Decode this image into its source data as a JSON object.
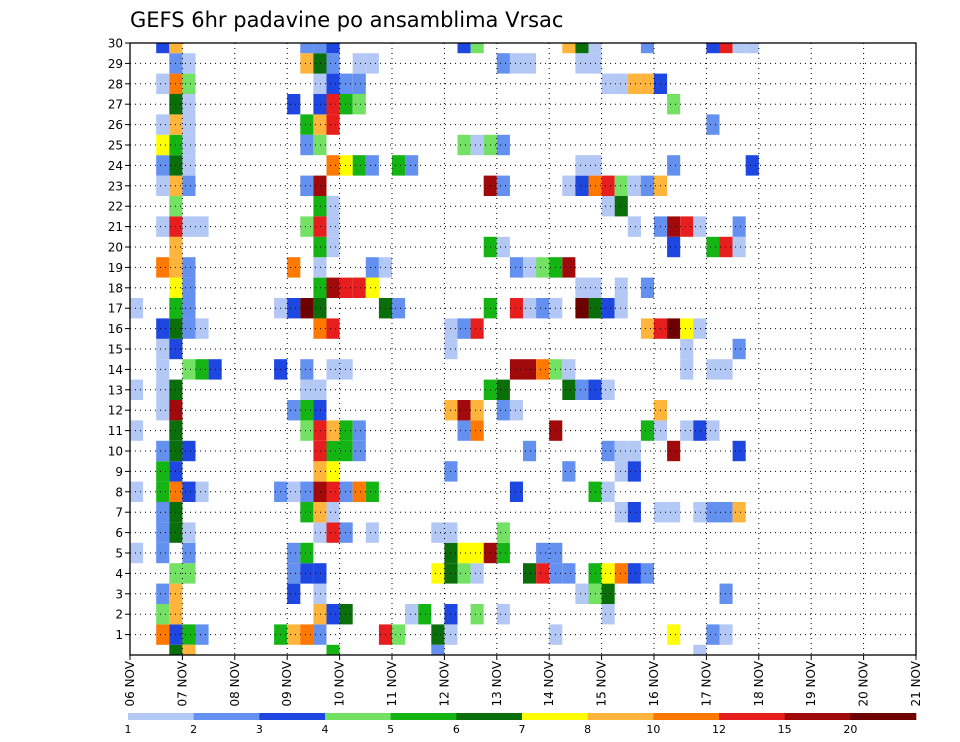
{
  "chart_data": {
    "type": "heatmap",
    "title": "GEFS 6hr padavine po ansamblima Vrsac",
    "y_ticks": [
      "1",
      "2",
      "3",
      "4",
      "5",
      "6",
      "7",
      "8",
      "9",
      "10",
      "11",
      "12",
      "13",
      "14",
      "15",
      "16",
      "17",
      "18",
      "19",
      "20",
      "21",
      "22",
      "23",
      "24",
      "25",
      "26",
      "27",
      "28",
      "29",
      "30"
    ],
    "x_ticks": [
      "06 NOV",
      "07 NOV",
      "08 NOV",
      "09 NOV",
      "10 NOV",
      "11 NOV",
      "12 NOV",
      "13 NOV",
      "14 NOV",
      "15 NOV",
      "16 NOV",
      "17 NOV",
      "18 NOV",
      "19 NOV",
      "20 NOV",
      "21 NOV"
    ],
    "x_range_days": [
      0,
      15
    ],
    "y_range": [
      0,
      30
    ],
    "grid": true,
    "colorbar": {
      "labels": [
        "1",
        "2",
        "3",
        "4",
        "5",
        "6",
        "7",
        "8",
        "10",
        "12",
        "15",
        "20"
      ],
      "colors": [
        "#b4c8f5",
        "#6490f0",
        "#1e46e1",
        "#73e164",
        "#14b414",
        "#0a6e0a",
        "#ffff00",
        "#ffb43c",
        "#ff7800",
        "#e61e1e",
        "#a00a0a",
        "#6e0000"
      ]
    },
    "cells": [
      [
        1,
        2,
        9
      ],
      [
        1,
        3,
        3
      ],
      [
        1,
        4,
        5
      ],
      [
        1,
        5,
        2
      ],
      [
        1,
        11,
        5
      ],
      [
        1,
        12,
        8
      ],
      [
        1,
        13,
        9
      ],
      [
        1,
        14,
        2
      ],
      [
        1,
        19,
        10
      ],
      [
        1,
        20,
        4
      ],
      [
        1,
        23,
        6
      ],
      [
        1,
        24,
        1
      ],
      [
        1,
        32,
        1
      ],
      [
        1,
        41,
        7
      ],
      [
        1,
        44,
        2
      ],
      [
        1,
        45,
        1
      ],
      [
        2,
        2,
        4
      ],
      [
        2,
        3,
        8
      ],
      [
        2,
        14,
        8
      ],
      [
        2,
        15,
        3
      ],
      [
        2,
        16,
        6
      ],
      [
        2,
        21,
        1
      ],
      [
        2,
        22,
        5
      ],
      [
        2,
        24,
        3
      ],
      [
        2,
        26,
        4
      ],
      [
        2,
        28,
        1
      ],
      [
        2,
        36,
        1
      ],
      [
        3,
        2,
        2
      ],
      [
        3,
        3,
        8
      ],
      [
        3,
        12,
        3
      ],
      [
        3,
        14,
        1
      ],
      [
        3,
        34,
        1
      ],
      [
        3,
        35,
        4
      ],
      [
        3,
        36,
        6
      ],
      [
        3,
        45,
        2
      ],
      [
        4,
        3,
        4
      ],
      [
        4,
        4,
        4
      ],
      [
        4,
        12,
        2
      ],
      [
        4,
        13,
        3
      ],
      [
        4,
        14,
        3
      ],
      [
        4,
        23,
        7
      ],
      [
        4,
        24,
        6
      ],
      [
        4,
        25,
        4
      ],
      [
        4,
        26,
        1
      ],
      [
        4,
        30,
        6
      ],
      [
        4,
        31,
        10
      ],
      [
        4,
        32,
        2
      ],
      [
        4,
        33,
        2
      ],
      [
        4,
        35,
        5
      ],
      [
        4,
        36,
        7
      ],
      [
        4,
        37,
        9
      ],
      [
        4,
        38,
        3
      ],
      [
        4,
        39,
        2
      ],
      [
        5,
        0,
        1
      ],
      [
        5,
        2,
        2
      ],
      [
        5,
        4,
        2
      ],
      [
        5,
        12,
        2
      ],
      [
        5,
        13,
        5
      ],
      [
        5,
        24,
        6
      ],
      [
        5,
        25,
        7
      ],
      [
        5,
        26,
        7
      ],
      [
        5,
        27,
        11
      ],
      [
        5,
        28,
        5
      ],
      [
        5,
        31,
        2
      ],
      [
        5,
        32,
        2
      ],
      [
        6,
        2,
        2
      ],
      [
        6,
        3,
        6
      ],
      [
        6,
        4,
        1
      ],
      [
        6,
        14,
        1
      ],
      [
        6,
        15,
        10
      ],
      [
        6,
        16,
        2
      ],
      [
        6,
        18,
        1
      ],
      [
        6,
        23,
        1
      ],
      [
        6,
        24,
        1
      ],
      [
        6,
        28,
        4
      ],
      [
        7,
        2,
        2
      ],
      [
        7,
        3,
        6
      ],
      [
        7,
        13,
        5
      ],
      [
        7,
        14,
        8
      ],
      [
        7,
        15,
        1
      ],
      [
        7,
        37,
        1
      ],
      [
        7,
        38,
        3
      ],
      [
        7,
        40,
        1
      ],
      [
        7,
        41,
        1
      ],
      [
        7,
        43,
        1
      ],
      [
        7,
        44,
        2
      ],
      [
        7,
        45,
        2
      ],
      [
        7,
        46,
        8
      ],
      [
        8,
        0,
        1
      ],
      [
        8,
        2,
        5
      ],
      [
        8,
        3,
        9
      ],
      [
        8,
        4,
        3
      ],
      [
        8,
        5,
        1
      ],
      [
        8,
        11,
        2
      ],
      [
        8,
        12,
        1
      ],
      [
        8,
        13,
        2
      ],
      [
        8,
        14,
        11
      ],
      [
        8,
        15,
        10
      ],
      [
        8,
        16,
        2
      ],
      [
        8,
        17,
        9
      ],
      [
        8,
        18,
        5
      ],
      [
        8,
        29,
        3
      ],
      [
        8,
        35,
        5
      ],
      [
        8,
        36,
        1
      ],
      [
        9,
        2,
        5
      ],
      [
        9,
        3,
        3
      ],
      [
        9,
        14,
        8
      ],
      [
        9,
        15,
        7
      ],
      [
        9,
        24,
        2
      ],
      [
        9,
        33,
        2
      ],
      [
        9,
        37,
        1
      ],
      [
        9,
        38,
        3
      ],
      [
        10,
        2,
        2
      ],
      [
        10,
        3,
        6
      ],
      [
        10,
        4,
        3
      ],
      [
        10,
        14,
        10
      ],
      [
        10,
        15,
        5
      ],
      [
        10,
        16,
        5
      ],
      [
        10,
        17,
        2
      ],
      [
        10,
        30,
        2
      ],
      [
        10,
        36,
        2
      ],
      [
        10,
        37,
        1
      ],
      [
        10,
        38,
        1
      ],
      [
        10,
        41,
        11
      ],
      [
        10,
        46,
        3
      ],
      [
        11,
        0,
        1
      ],
      [
        11,
        3,
        6
      ],
      [
        11,
        13,
        4
      ],
      [
        11,
        14,
        10
      ],
      [
        11,
        15,
        8
      ],
      [
        11,
        16,
        5
      ],
      [
        11,
        17,
        2
      ],
      [
        11,
        25,
        2
      ],
      [
        11,
        26,
        9
      ],
      [
        11,
        32,
        11
      ],
      [
        11,
        39,
        5
      ],
      [
        11,
        40,
        1
      ],
      [
        11,
        42,
        1
      ],
      [
        11,
        43,
        3
      ],
      [
        11,
        44,
        1
      ],
      [
        12,
        2,
        1
      ],
      [
        12,
        3,
        11
      ],
      [
        12,
        12,
        2
      ],
      [
        12,
        13,
        5
      ],
      [
        12,
        14,
        3
      ],
      [
        12,
        24,
        8
      ],
      [
        12,
        25,
        11
      ],
      [
        12,
        26,
        8
      ],
      [
        12,
        28,
        2
      ],
      [
        12,
        29,
        1
      ],
      [
        12,
        40,
        8
      ],
      [
        13,
        0,
        1
      ],
      [
        13,
        2,
        1
      ],
      [
        13,
        3,
        6
      ],
      [
        13,
        13,
        1
      ],
      [
        13,
        14,
        1
      ],
      [
        13,
        27,
        5
      ],
      [
        13,
        28,
        6
      ],
      [
        13,
        33,
        6
      ],
      [
        13,
        34,
        2
      ],
      [
        13,
        35,
        3
      ],
      [
        13,
        36,
        1
      ],
      [
        14,
        2,
        1
      ],
      [
        14,
        4,
        4
      ],
      [
        14,
        5,
        5
      ],
      [
        14,
        6,
        3
      ],
      [
        14,
        11,
        3
      ],
      [
        14,
        13,
        2
      ],
      [
        14,
        15,
        1
      ],
      [
        14,
        16,
        1
      ],
      [
        14,
        29,
        11
      ],
      [
        14,
        30,
        11
      ],
      [
        14,
        31,
        9
      ],
      [
        14,
        32,
        4
      ],
      [
        14,
        33,
        1
      ],
      [
        14,
        42,
        1
      ],
      [
        14,
        44,
        1
      ],
      [
        14,
        45,
        1
      ],
      [
        15,
        2,
        1
      ],
      [
        15,
        3,
        3
      ],
      [
        15,
        24,
        1
      ],
      [
        15,
        42,
        1
      ],
      [
        15,
        46,
        2
      ],
      [
        16,
        2,
        3
      ],
      [
        16,
        3,
        6
      ],
      [
        16,
        4,
        2
      ],
      [
        16,
        5,
        1
      ],
      [
        16,
        14,
        9
      ],
      [
        16,
        15,
        10
      ],
      [
        16,
        24,
        1
      ],
      [
        16,
        25,
        2
      ],
      [
        16,
        26,
        10
      ],
      [
        16,
        39,
        8
      ],
      [
        16,
        40,
        10
      ],
      [
        16,
        41,
        12
      ],
      [
        16,
        42,
        7
      ],
      [
        16,
        43,
        1
      ],
      [
        17,
        0,
        1
      ],
      [
        17,
        3,
        5
      ],
      [
        17,
        4,
        2
      ],
      [
        17,
        11,
        1
      ],
      [
        17,
        12,
        3
      ],
      [
        17,
        13,
        12
      ],
      [
        17,
        14,
        6
      ],
      [
        17,
        19,
        6
      ],
      [
        17,
        20,
        2
      ],
      [
        17,
        27,
        5
      ],
      [
        17,
        29,
        10
      ],
      [
        17,
        30,
        1
      ],
      [
        17,
        31,
        2
      ],
      [
        17,
        32,
        1
      ],
      [
        17,
        34,
        12
      ],
      [
        17,
        35,
        6
      ],
      [
        17,
        36,
        3
      ],
      [
        17,
        37,
        1
      ],
      [
        18,
        3,
        7
      ],
      [
        18,
        4,
        2
      ],
      [
        18,
        14,
        5
      ],
      [
        18,
        15,
        11
      ],
      [
        18,
        16,
        10
      ],
      [
        18,
        17,
        10
      ],
      [
        18,
        18,
        7
      ],
      [
        18,
        34,
        1
      ],
      [
        18,
        35,
        1
      ],
      [
        18,
        37,
        1
      ],
      [
        18,
        39,
        2
      ],
      [
        19,
        2,
        9
      ],
      [
        19,
        3,
        8
      ],
      [
        19,
        4,
        2
      ],
      [
        19,
        12,
        9
      ],
      [
        19,
        14,
        1
      ],
      [
        19,
        18,
        2
      ],
      [
        19,
        19,
        1
      ],
      [
        19,
        29,
        2
      ],
      [
        19,
        30,
        1
      ],
      [
        19,
        31,
        4
      ],
      [
        19,
        32,
        5
      ],
      [
        19,
        33,
        11
      ],
      [
        20,
        3,
        8
      ],
      [
        20,
        14,
        5
      ],
      [
        20,
        15,
        1
      ],
      [
        20,
        27,
        5
      ],
      [
        20,
        28,
        1
      ],
      [
        20,
        41,
        3
      ],
      [
        20,
        44,
        5
      ],
      [
        20,
        45,
        10
      ],
      [
        20,
        46,
        1
      ],
      [
        21,
        2,
        1
      ],
      [
        21,
        3,
        10
      ],
      [
        21,
        4,
        1
      ],
      [
        21,
        5,
        1
      ],
      [
        21,
        13,
        4
      ],
      [
        21,
        14,
        10
      ],
      [
        21,
        15,
        1
      ],
      [
        21,
        38,
        1
      ],
      [
        21,
        40,
        2
      ],
      [
        21,
        41,
        11
      ],
      [
        21,
        42,
        10
      ],
      [
        21,
        43,
        1
      ],
      [
        21,
        46,
        2
      ],
      [
        22,
        3,
        4
      ],
      [
        22,
        14,
        5
      ],
      [
        22,
        15,
        1
      ],
      [
        22,
        36,
        1
      ],
      [
        22,
        37,
        6
      ],
      [
        23,
        2,
        1
      ],
      [
        23,
        3,
        8
      ],
      [
        23,
        4,
        2
      ],
      [
        23,
        13,
        2
      ],
      [
        23,
        14,
        11
      ],
      [
        23,
        27,
        11
      ],
      [
        23,
        28,
        2
      ],
      [
        23,
        33,
        1
      ],
      [
        23,
        34,
        3
      ],
      [
        23,
        35,
        9
      ],
      [
        23,
        36,
        10
      ],
      [
        23,
        37,
        4
      ],
      [
        23,
        38,
        1
      ],
      [
        23,
        39,
        2
      ],
      [
        23,
        40,
        8
      ],
      [
        24,
        2,
        2
      ],
      [
        24,
        3,
        6
      ],
      [
        24,
        4,
        1
      ],
      [
        24,
        15,
        9
      ],
      [
        24,
        16,
        7
      ],
      [
        24,
        17,
        5
      ],
      [
        24,
        18,
        2
      ],
      [
        24,
        20,
        5
      ],
      [
        24,
        21,
        2
      ],
      [
        24,
        34,
        1
      ],
      [
        24,
        35,
        1
      ],
      [
        24,
        41,
        2
      ],
      [
        24,
        47,
        3
      ],
      [
        25,
        2,
        7
      ],
      [
        25,
        3,
        5
      ],
      [
        25,
        4,
        1
      ],
      [
        25,
        13,
        2
      ],
      [
        25,
        14,
        4
      ],
      [
        25,
        25,
        4
      ],
      [
        25,
        26,
        1
      ],
      [
        25,
        27,
        4
      ],
      [
        25,
        28,
        2
      ],
      [
        26,
        2,
        1
      ],
      [
        26,
        3,
        8
      ],
      [
        26,
        4,
        1
      ],
      [
        26,
        13,
        5
      ],
      [
        26,
        14,
        8
      ],
      [
        26,
        15,
        10
      ],
      [
        26,
        44,
        2
      ],
      [
        27,
        3,
        6
      ],
      [
        27,
        4,
        1
      ],
      [
        27,
        12,
        3
      ],
      [
        27,
        14,
        3
      ],
      [
        27,
        15,
        10
      ],
      [
        27,
        16,
        5
      ],
      [
        27,
        17,
        4
      ],
      [
        27,
        41,
        4
      ],
      [
        28,
        2,
        1
      ],
      [
        28,
        3,
        9
      ],
      [
        28,
        4,
        4
      ],
      [
        28,
        14,
        1
      ],
      [
        28,
        15,
        3
      ],
      [
        28,
        16,
        2
      ],
      [
        28,
        17,
        2
      ],
      [
        28,
        36,
        1
      ],
      [
        28,
        37,
        1
      ],
      [
        28,
        38,
        8
      ],
      [
        28,
        39,
        8
      ],
      [
        28,
        40,
        3
      ],
      [
        29,
        3,
        2
      ],
      [
        29,
        4,
        1
      ],
      [
        29,
        13,
        8
      ],
      [
        29,
        14,
        6
      ],
      [
        29,
        15,
        2
      ],
      [
        29,
        17,
        1
      ],
      [
        29,
        18,
        1
      ],
      [
        29,
        28,
        2
      ],
      [
        29,
        29,
        1
      ],
      [
        29,
        30,
        1
      ],
      [
        29,
        34,
        1
      ],
      [
        29,
        35,
        1
      ],
      [
        30,
        2,
        3
      ],
      [
        30,
        3,
        8
      ],
      [
        30,
        13,
        2
      ],
      [
        30,
        14,
        2
      ],
      [
        30,
        15,
        3
      ],
      [
        30,
        25,
        3
      ],
      [
        30,
        26,
        4
      ],
      [
        30,
        33,
        8
      ],
      [
        30,
        34,
        6
      ],
      [
        30,
        35,
        1
      ],
      [
        30,
        39,
        2
      ],
      [
        30,
        44,
        3
      ],
      [
        30,
        45,
        10
      ],
      [
        30,
        46,
        1
      ],
      [
        30,
        47,
        1
      ],
      [
        0,
        3,
        6
      ],
      [
        0,
        4,
        8
      ],
      [
        0,
        15,
        5
      ],
      [
        0,
        23,
        2
      ],
      [
        0,
        43,
        1
      ]
    ]
  }
}
